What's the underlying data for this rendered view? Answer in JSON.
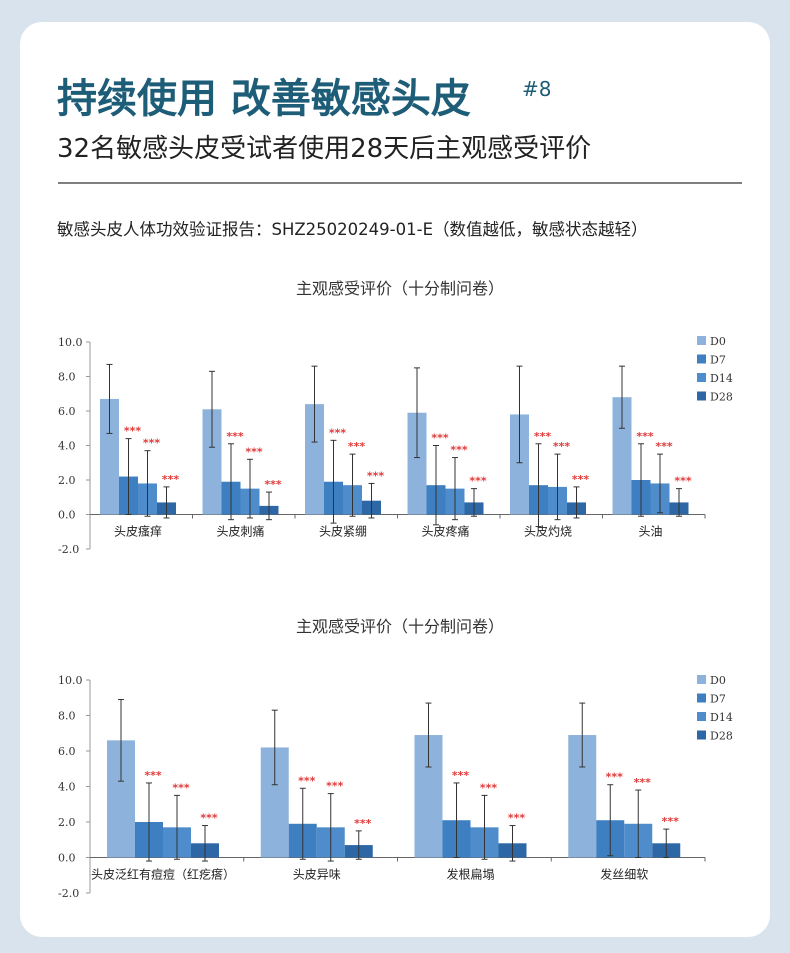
{
  "header": {
    "title": "持续使用 改善敏感头皮",
    "title_note": "#8",
    "subtitle": "32名敏感头皮受试者使用28天后主观感受评价",
    "report": "敏感头皮人体功效验证报告：SHZ25020249-01-E（数值越低，敏感状态越轻）"
  },
  "chart_data": [
    {
      "type": "bar",
      "title": "主观感受评价（十分制问卷）",
      "categories": [
        "头皮瘙痒",
        "头皮刺痛",
        "头皮紧绷",
        "头皮疼痛",
        "头皮灼烧",
        "头油"
      ],
      "series": [
        {
          "name": "D0",
          "color": "#8db3dc",
          "values": [
            6.7,
            6.1,
            6.4,
            5.9,
            5.8,
            6.8
          ],
          "errors": [
            2.0,
            2.2,
            2.2,
            2.6,
            2.8,
            1.8
          ]
        },
        {
          "name": "D7",
          "color": "#3e7fc1",
          "values": [
            2.2,
            1.9,
            1.9,
            1.7,
            1.7,
            2.0
          ],
          "errors": [
            2.2,
            2.2,
            2.4,
            2.3,
            2.4,
            2.1
          ],
          "significance": "***"
        },
        {
          "name": "D14",
          "color": "#4f8ccb",
          "values": [
            1.8,
            1.5,
            1.7,
            1.5,
            1.6,
            1.8
          ],
          "errors": [
            1.9,
            1.7,
            1.8,
            1.8,
            1.9,
            1.7
          ],
          "significance": "***"
        },
        {
          "name": "D28",
          "color": "#2e67a6",
          "values": [
            0.7,
            0.5,
            0.8,
            0.7,
            0.7,
            0.7
          ],
          "errors": [
            0.9,
            0.8,
            1.0,
            0.8,
            0.9,
            0.8
          ],
          "significance": "***"
        }
      ],
      "ylim": [
        -2,
        10
      ],
      "yticks": [
        {
          "value": -2,
          "label": "-2.0"
        },
        {
          "value": 0,
          "label": "0.0"
        },
        {
          "value": 2,
          "label": "2.0"
        },
        {
          "value": 4,
          "label": "4.0"
        },
        {
          "value": 6,
          "label": "6.0"
        },
        {
          "value": 8,
          "label": "8.0"
        },
        {
          "value": 10,
          "label": "10.0"
        }
      ],
      "legend": "right"
    },
    {
      "type": "bar",
      "title": "主观感受评价（十分制问卷）",
      "categories": [
        "头皮泛红有痘痘（红疙瘩）",
        "头皮异味",
        "发根扁塌",
        "发丝细软"
      ],
      "series": [
        {
          "name": "D0",
          "color": "#8db3dc",
          "values": [
            6.6,
            6.2,
            6.9,
            6.9
          ],
          "errors": [
            2.3,
            2.1,
            1.8,
            1.8
          ]
        },
        {
          "name": "D7",
          "color": "#3e7fc1",
          "values": [
            2.0,
            1.9,
            2.1,
            2.1
          ],
          "errors": [
            2.2,
            2.0,
            2.1,
            2.0
          ],
          "significance": "***"
        },
        {
          "name": "D14",
          "color": "#4f8ccb",
          "values": [
            1.7,
            1.7,
            1.7,
            1.9
          ],
          "errors": [
            1.8,
            1.9,
            1.8,
            1.9
          ],
          "significance": "***"
        },
        {
          "name": "D28",
          "color": "#2e67a6",
          "values": [
            0.8,
            0.7,
            0.8,
            0.8
          ],
          "errors": [
            1.0,
            0.8,
            1.0,
            0.8
          ],
          "significance": "***"
        }
      ],
      "ylim": [
        -2,
        10
      ],
      "yticks": [
        {
          "value": -2,
          "label": "-2.0"
        },
        {
          "value": 0,
          "label": "0.0"
        },
        {
          "value": 2,
          "label": "2.0"
        },
        {
          "value": 4,
          "label": "4.0"
        },
        {
          "value": 6,
          "label": "6.0"
        },
        {
          "value": 8,
          "label": "8.0"
        },
        {
          "value": 10,
          "label": "10.0"
        }
      ],
      "legend": "right"
    }
  ]
}
